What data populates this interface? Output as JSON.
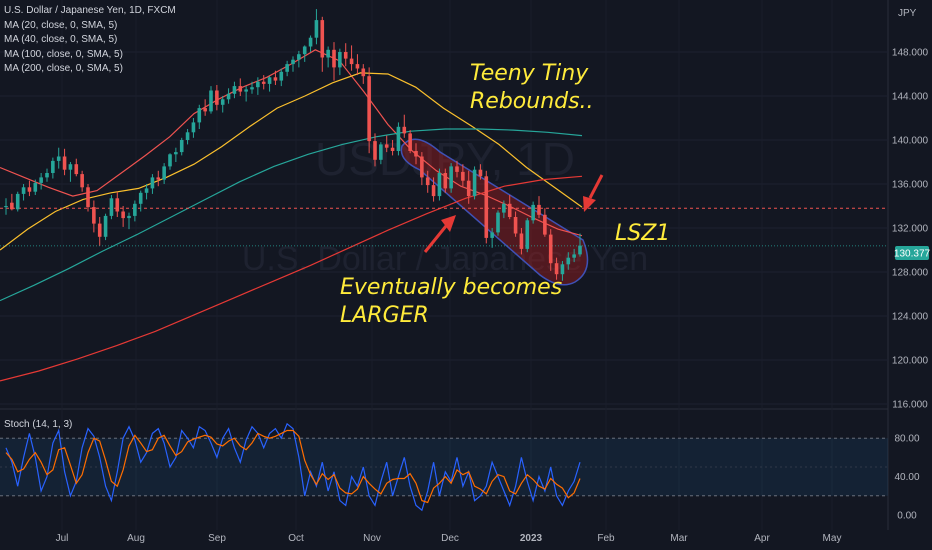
{
  "legend": {
    "symbol": "U.S. Dollar / Japanese Yen, 1D, FXCM",
    "ma20": "MA (20, close, 0, SMA, 5)",
    "ma40": "MA (40, close, 0, SMA, 5)",
    "ma100": "MA (100, close, 0, SMA, 5)",
    "ma200": "MA (200, close, 0, SMA, 5)"
  },
  "watermark": {
    "ticker": "USDJPY, 1D",
    "name": "U.S. Dollar / Japanese Yen"
  },
  "annotations": {
    "top": [
      "Teeny Tiny",
      "Rebounds.."
    ],
    "bottom": [
      "Eventually becomes",
      "LARGER"
    ],
    "lsz": "LSZ1"
  },
  "price_tag": "130.377",
  "currency": "JPY",
  "stoch_label": "Stoch (14, 1, 3)",
  "colors": {
    "bg": "#131722",
    "up": "#26a69a",
    "down": "#ef5350",
    "ma20": "#ef5350",
    "ma40": "#fbc02d",
    "ma100": "#26a69a",
    "ma200": "#e53935",
    "annotation": "#ffeb3b",
    "stoch_k": "#2962ff",
    "stoch_d": "#ff6d00"
  },
  "chart_data": [
    {
      "type": "candlestick",
      "title": "U.S. Dollar / Japanese Yen, 1D, FXCM",
      "ylabel": "JPY",
      "ylim": [
        116,
        152
      ],
      "y_ticks": [
        116,
        120,
        124,
        128,
        132,
        136,
        140,
        144,
        148
      ],
      "x_ticks": [
        "Jul",
        "Aug",
        "Sep",
        "Oct",
        "Nov",
        "Dec",
        "2023",
        "Feb",
        "Mar",
        "Apr",
        "May"
      ],
      "last_price": 130.377,
      "horizontal_line": 133.8,
      "ohlc": [
        [
          133.9,
          134.7,
          133.2,
          134.0
        ],
        [
          134.3,
          135.1,
          133.6,
          133.7
        ],
        [
          133.7,
          135.3,
          133.5,
          135.1
        ],
        [
          135.1,
          136.0,
          134.5,
          135.7
        ],
        [
          135.7,
          136.3,
          134.9,
          135.3
        ],
        [
          135.3,
          136.4,
          135.0,
          136.1
        ],
        [
          136.1,
          137.0,
          135.5,
          136.6
        ],
        [
          136.6,
          137.4,
          136.2,
          137.0
        ],
        [
          137.0,
          138.4,
          136.5,
          138.1
        ],
        [
          138.1,
          139.3,
          137.4,
          138.5
        ],
        [
          138.5,
          139.2,
          136.8,
          137.3
        ],
        [
          137.3,
          138.0,
          136.2,
          137.8
        ],
        [
          137.8,
          138.3,
          136.7,
          136.9
        ],
        [
          136.9,
          137.2,
          135.3,
          135.7
        ],
        [
          135.7,
          136.0,
          133.5,
          133.9
        ],
        [
          133.9,
          134.5,
          131.6,
          132.4
        ],
        [
          132.4,
          133.0,
          130.4,
          131.2
        ],
        [
          131.2,
          133.3,
          130.9,
          133.1
        ],
        [
          133.1,
          135.0,
          132.8,
          134.7
        ],
        [
          134.7,
          135.3,
          133.0,
          133.5
        ],
        [
          133.5,
          134.0,
          132.1,
          132.9
        ],
        [
          132.9,
          133.4,
          131.9,
          133.1
        ],
        [
          133.1,
          134.5,
          132.6,
          134.2
        ],
        [
          134.2,
          135.4,
          133.5,
          135.2
        ],
        [
          135.2,
          136.0,
          134.6,
          135.6
        ],
        [
          135.6,
          136.9,
          135.1,
          136.6
        ],
        [
          136.6,
          137.2,
          135.8,
          136.4
        ],
        [
          136.4,
          137.9,
          136.0,
          137.6
        ],
        [
          137.6,
          138.8,
          137.3,
          138.7
        ],
        [
          138.7,
          139.3,
          138.0,
          138.9
        ],
        [
          138.9,
          140.2,
          138.6,
          140.0
        ],
        [
          140.0,
          141.0,
          139.6,
          140.7
        ],
        [
          140.7,
          142.0,
          140.2,
          141.6
        ],
        [
          141.6,
          143.2,
          141.0,
          142.9
        ],
        [
          142.9,
          143.7,
          142.2,
          142.6
        ],
        [
          142.6,
          144.9,
          142.4,
          144.5
        ],
        [
          144.5,
          145.0,
          142.7,
          143.2
        ],
        [
          143.2,
          144.0,
          142.5,
          143.7
        ],
        [
          143.7,
          144.7,
          143.3,
          144.2
        ],
        [
          144.2,
          145.3,
          143.8,
          144.9
        ],
        [
          144.9,
          145.6,
          144.0,
          144.4
        ],
        [
          144.4,
          144.9,
          143.5,
          144.6
        ],
        [
          144.6,
          145.3,
          144.2,
          144.8
        ],
        [
          144.8,
          145.7,
          144.1,
          145.3
        ],
        [
          145.3,
          145.9,
          144.6,
          145.1
        ],
        [
          145.1,
          145.8,
          144.4,
          145.7
        ],
        [
          145.7,
          146.3,
          145.0,
          145.4
        ],
        [
          145.4,
          146.5,
          144.9,
          146.2
        ],
        [
          146.2,
          147.2,
          145.8,
          146.9
        ],
        [
          146.9,
          147.6,
          146.2,
          147.3
        ],
        [
          147.3,
          148.1,
          146.6,
          147.8
        ],
        [
          147.8,
          148.6,
          147.1,
          148.5
        ],
        [
          148.5,
          149.5,
          148.0,
          149.3
        ],
        [
          149.3,
          151.9,
          148.7,
          150.9
        ],
        [
          150.9,
          151.2,
          146.2,
          147.5
        ],
        [
          147.5,
          148.5,
          146.6,
          148.2
        ],
        [
          148.2,
          148.9,
          145.4,
          146.6
        ],
        [
          146.6,
          148.3,
          145.9,
          148.0
        ],
        [
          148.0,
          148.8,
          146.7,
          147.4
        ],
        [
          147.4,
          148.6,
          146.3,
          146.9
        ],
        [
          146.9,
          147.8,
          145.9,
          146.5
        ],
        [
          146.5,
          146.9,
          145.1,
          145.8
        ],
        [
          145.8,
          146.6,
          138.8,
          139.9
        ],
        [
          139.9,
          140.6,
          137.6,
          138.2
        ],
        [
          138.2,
          139.8,
          137.8,
          139.6
        ],
        [
          139.6,
          140.4,
          138.9,
          139.3
        ],
        [
          139.3,
          140.0,
          138.6,
          139.0
        ],
        [
          139.0,
          141.6,
          138.6,
          141.2
        ],
        [
          141.2,
          142.3,
          140.2,
          140.6
        ],
        [
          140.6,
          140.9,
          138.8,
          139.0
        ],
        [
          139.0,
          139.7,
          137.8,
          138.5
        ],
        [
          138.5,
          138.9,
          135.9,
          136.6
        ],
        [
          136.6,
          137.2,
          135.2,
          135.9
        ],
        [
          135.9,
          136.6,
          134.4,
          134.9
        ],
        [
          134.9,
          137.4,
          134.5,
          137.0
        ],
        [
          137.0,
          137.4,
          135.2,
          135.6
        ],
        [
          135.6,
          137.9,
          135.2,
          137.6
        ],
        [
          137.6,
          138.1,
          136.6,
          137.1
        ],
        [
          137.1,
          137.8,
          135.8,
          136.3
        ],
        [
          136.3,
          137.2,
          134.2,
          134.9
        ],
        [
          134.9,
          137.6,
          134.6,
          137.3
        ],
        [
          137.3,
          137.8,
          136.4,
          136.7
        ],
        [
          136.7,
          137.2,
          130.6,
          131.1
        ],
        [
          131.1,
          132.0,
          130.2,
          131.6
        ],
        [
          131.6,
          133.6,
          131.3,
          133.4
        ],
        [
          133.4,
          134.5,
          132.9,
          134.2
        ],
        [
          134.2,
          135.0,
          132.8,
          133.0
        ],
        [
          133.0,
          133.5,
          131.2,
          131.5
        ],
        [
          131.5,
          132.0,
          129.6,
          130.1
        ],
        [
          130.1,
          132.9,
          129.8,
          132.7
        ],
        [
          132.7,
          134.4,
          132.4,
          134.1
        ],
        [
          134.1,
          134.9,
          132.9,
          133.2
        ],
        [
          133.2,
          133.8,
          131.2,
          131.4
        ],
        [
          131.4,
          131.9,
          128.1,
          128.8
        ],
        [
          128.8,
          129.3,
          127.3,
          127.8
        ],
        [
          127.8,
          129.0,
          127.2,
          128.7
        ],
        [
          128.7,
          129.8,
          128.2,
          129.3
        ],
        [
          129.3,
          130.1,
          128.9,
          129.6
        ],
        [
          129.6,
          131.5,
          129.4,
          130.4
        ]
      ],
      "moving_averages": {
        "MA20": [
          137.5,
          136.6,
          135.7,
          134.9,
          135.4,
          137.0,
          138.6,
          140.3,
          142.4,
          143.7,
          144.8,
          145.7,
          146.9,
          148.2,
          147.2,
          144.4,
          141.4,
          139.0,
          137.2,
          135.8,
          135.0,
          134.0,
          132.9,
          131.9,
          131.3
        ],
        "MA40": [
          130.0,
          131.9,
          133.5,
          134.6,
          135.2,
          135.6,
          136.6,
          137.8,
          139.4,
          141.2,
          142.9,
          144.0,
          145.2,
          146.1,
          146.0,
          144.8,
          142.9,
          141.3,
          139.6,
          137.5,
          135.7,
          133.9
        ],
        "MA100": [
          125.4,
          126.8,
          128.3,
          129.9,
          131.4,
          133.0,
          134.6,
          136.2,
          137.6,
          138.7,
          139.6,
          140.3,
          140.8,
          141.0,
          141.0,
          140.9,
          140.7,
          140.4
        ],
        "MA200": [
          118.1,
          119.0,
          120.1,
          121.3,
          122.6,
          124.1,
          125.6,
          127.1,
          128.6,
          130.2,
          131.8,
          133.3,
          134.7,
          135.8,
          136.4,
          136.7
        ]
      }
    },
    {
      "type": "line",
      "title": "Stoch (14, 1, 3)",
      "ylim": [
        0,
        100
      ],
      "y_ticks": [
        0,
        20,
        40,
        50,
        60,
        80
      ],
      "band": [
        20,
        80
      ],
      "series": [
        {
          "name": "%K",
          "values": [
            70,
            55,
            30,
            60,
            85,
            60,
            25,
            40,
            75,
            88,
            45,
            20,
            35,
            70,
            90,
            82,
            60,
            30,
            15,
            45,
            80,
            92,
            78,
            55,
            65,
            85,
            90,
            75,
            50,
            60,
            88,
            80,
            70,
            92,
            88,
            75,
            60,
            80,
            90,
            70,
            55,
            78,
            92,
            85,
            70,
            85,
            90,
            80,
            95,
            90,
            60,
            20,
            45,
            30,
            55,
            25,
            45,
            15,
            10,
            40,
            30,
            50,
            20,
            10,
            35,
            55,
            20,
            40,
            60,
            30,
            10,
            5,
            25,
            55,
            20,
            45,
            35,
            60,
            30,
            45,
            15,
            20,
            30,
            55,
            40,
            25,
            10,
            30,
            60,
            35,
            15,
            40,
            25,
            50,
            20,
            10,
            25,
            35,
            55
          ]
        },
        {
          "name": "%D",
          "values": [
            65,
            58,
            45,
            48,
            58,
            65,
            55,
            42,
            47,
            68,
            70,
            52,
            33,
            42,
            65,
            80,
            77,
            57,
            35,
            30,
            47,
            72,
            83,
            75,
            66,
            68,
            80,
            83,
            72,
            62,
            66,
            76,
            79,
            81,
            83,
            81,
            74,
            72,
            77,
            80,
            72,
            68,
            75,
            85,
            82,
            80,
            82,
            85,
            88,
            88,
            82,
            57,
            42,
            32,
            43,
            37,
            42,
            28,
            23,
            22,
            27,
            40,
            33,
            27,
            22,
            33,
            37,
            38,
            38,
            43,
            33,
            15,
            13,
            28,
            33,
            40,
            33,
            47,
            42,
            45,
            30,
            27,
            22,
            35,
            42,
            40,
            25,
            22,
            33,
            42,
            37,
            30,
            27,
            38,
            32,
            28,
            18,
            23,
            38
          ]
        }
      ]
    }
  ]
}
